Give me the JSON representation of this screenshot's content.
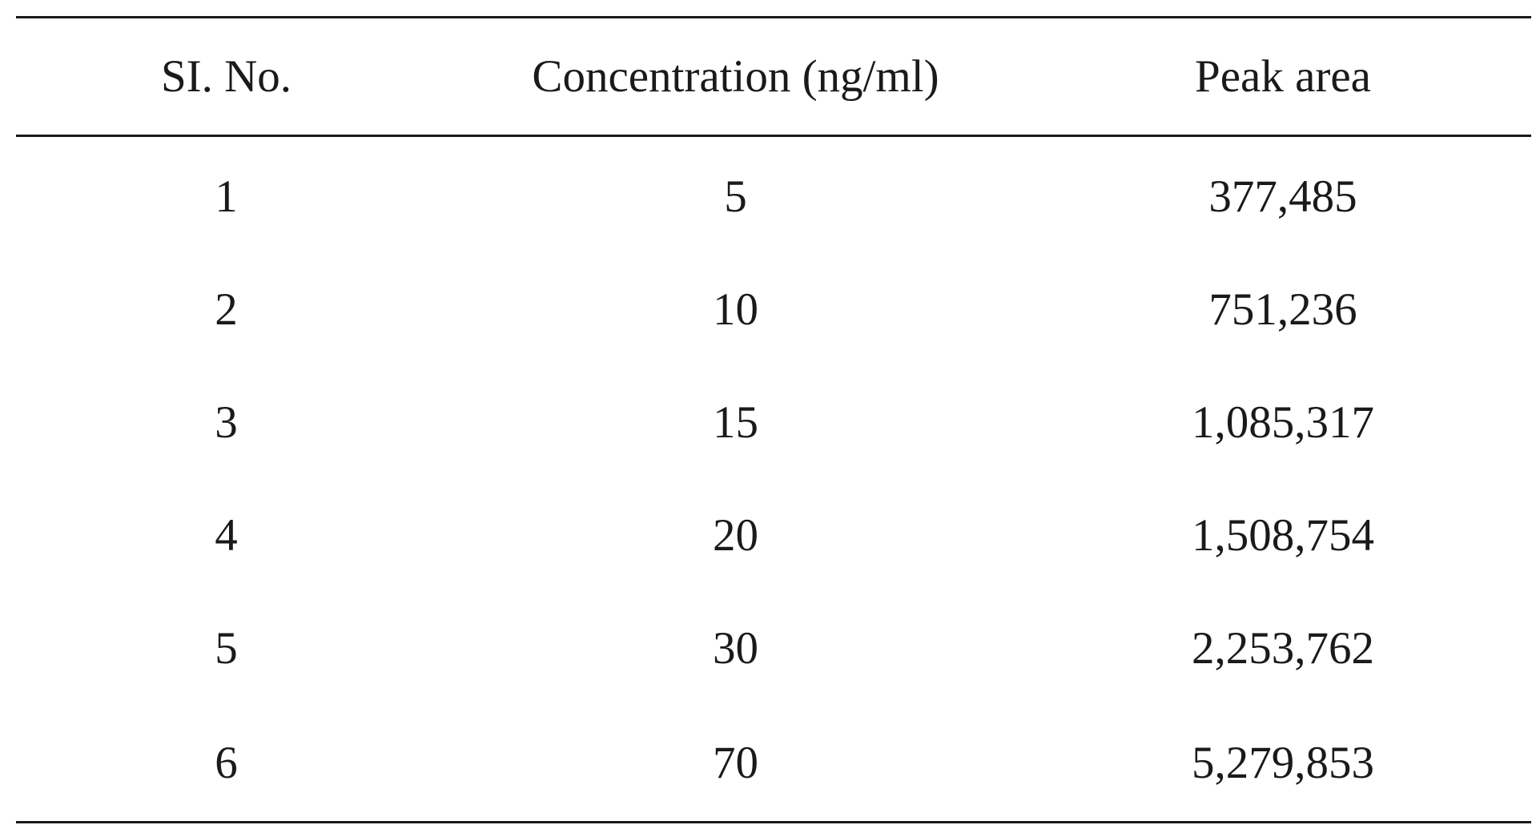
{
  "table": {
    "headers": [
      "SI. No.",
      "Concentration (ng/ml)",
      "Peak area"
    ],
    "rows": [
      [
        "1",
        "5",
        "377,485"
      ],
      [
        "2",
        "10",
        "751,236"
      ],
      [
        "3",
        "15",
        "1,085,317"
      ],
      [
        "4",
        "20",
        "1,508,754"
      ],
      [
        "5",
        "30",
        "2,253,762"
      ],
      [
        "6",
        "70",
        "5,279,853"
      ]
    ]
  }
}
